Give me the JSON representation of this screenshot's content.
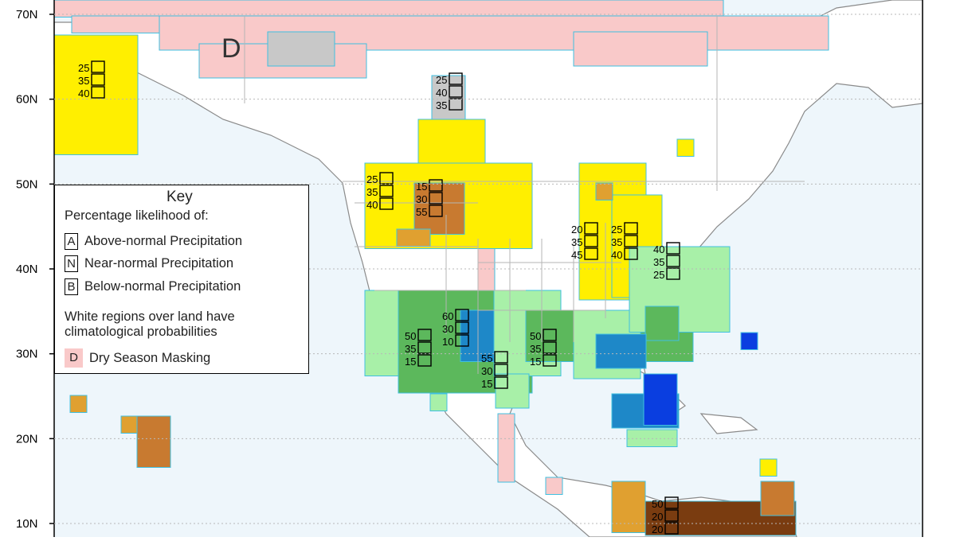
{
  "map": {
    "lat_labels": [
      {
        "label": "70N",
        "lat": 70
      },
      {
        "label": "60N",
        "lat": 60
      },
      {
        "label": "50N",
        "lat": 50
      },
      {
        "label": "40N",
        "lat": 40
      },
      {
        "label": "30N",
        "lat": 30
      },
      {
        "label": "20N",
        "lat": 20
      },
      {
        "label": "10N",
        "lat": 10
      }
    ],
    "dry_season_marker": "D",
    "colors": {
      "ocean": "#eef6fb",
      "land": "#ffffff",
      "dry_mask": "#f9c9c9",
      "near_normal": "#c8c8c8",
      "above_40": "#a8f0a8",
      "above_50": "#5cb85c",
      "above_60": "#1e88c8",
      "above_70": "#0a3ee0",
      "below_40": "#ffef00",
      "below_50": "#e0a030",
      "below_60": "#c87a30",
      "below_70": "#7a3c10",
      "coast": "#8a8a8a",
      "border": "#b5b5b5",
      "cell_outline": "#40c0e0"
    },
    "probability_labels": [
      {
        "values": [
          "25",
          "35",
          "40"
        ],
        "region": "alaska-west"
      },
      {
        "values": [
          "25",
          "40",
          "35"
        ],
        "region": "northwest-canada"
      },
      {
        "values": [
          "25",
          "35",
          "40"
        ],
        "region": "pacific-northwest"
      },
      {
        "values": [
          "15",
          "30",
          "55"
        ],
        "region": "northern-rockies"
      },
      {
        "values": [
          "20",
          "35",
          "45"
        ],
        "region": "great-lakes-west"
      },
      {
        "values": [
          "25",
          "35",
          "40"
        ],
        "region": "great-lakes-east"
      },
      {
        "values": [
          "40",
          "35",
          "25"
        ],
        "region": "new-england"
      },
      {
        "values": [
          "60",
          "30",
          "10"
        ],
        "region": "southern-plains"
      },
      {
        "values": [
          "50",
          "35",
          "15"
        ],
        "region": "southwest"
      },
      {
        "values": [
          "50",
          "35",
          "15"
        ],
        "region": "gulf-coast"
      },
      {
        "values": [
          "55",
          "30",
          "15"
        ],
        "region": "northern-mexico"
      },
      {
        "values": [
          "50",
          "20",
          "20"
        ],
        "region": "central-america"
      }
    ]
  },
  "key": {
    "title": "Key",
    "subtitle": "Percentage likelihood of:",
    "rows": [
      {
        "letter": "A",
        "text": "Above-normal Precipitation"
      },
      {
        "letter": "N",
        "text": "Near-normal Precipitation"
      },
      {
        "letter": "B",
        "text": "Below-normal Precipitation"
      }
    ],
    "note": "White regions over land have climatological probabilities",
    "dry_letter": "D",
    "dry_text": "Dry Season Masking"
  }
}
